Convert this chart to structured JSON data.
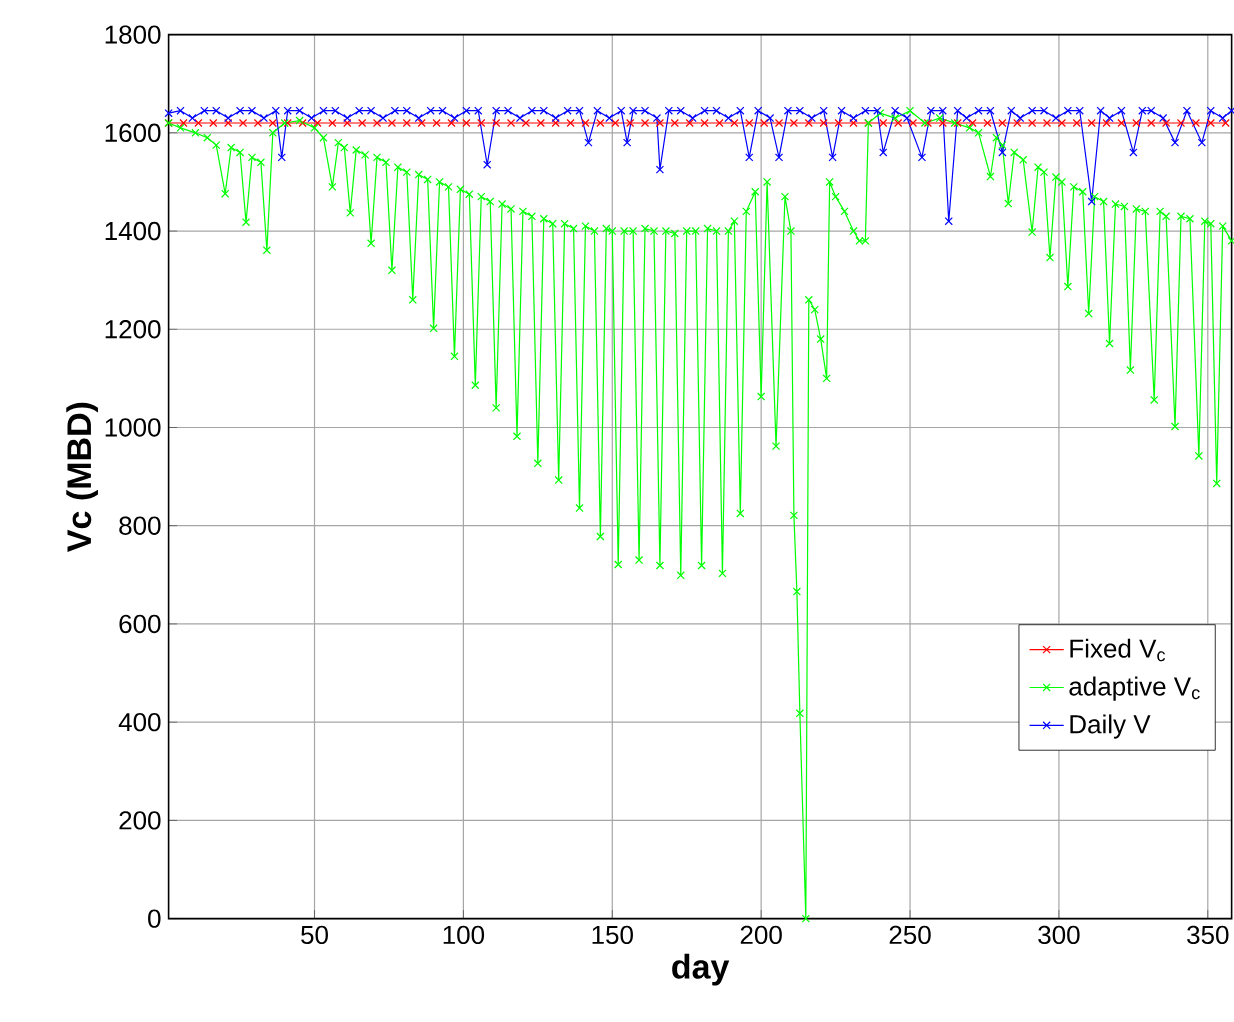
{
  "chart_data": {
    "type": "line",
    "xlabel": "day",
    "ylabel": "Vc (MBD)",
    "xlim": [
      1,
      358
    ],
    "ylim": [
      0,
      1800
    ],
    "xticks": [
      50,
      100,
      150,
      200,
      250,
      300,
      350
    ],
    "yticks": [
      0,
      200,
      400,
      600,
      800,
      1000,
      1200,
      1400,
      1600,
      1800
    ],
    "grid": true,
    "legend": "bottom right",
    "marker": "cross",
    "line_style": "solid",
    "series": [
      {
        "name": "Fixed V$_{c}$",
        "color": "#ff0000",
        "x": [
          1,
          6,
          11,
          16,
          21,
          26,
          31,
          36,
          41,
          46,
          51,
          56,
          61,
          66,
          71,
          76,
          81,
          86,
          91,
          96,
          101,
          106,
          111,
          116,
          121,
          126,
          131,
          136,
          141,
          146,
          151,
          156,
          161,
          166,
          171,
          176,
          181,
          186,
          191,
          196,
          201,
          206,
          211,
          216,
          221,
          226,
          231,
          236,
          241,
          246,
          251,
          256,
          261,
          266,
          271,
          276,
          281,
          286,
          291,
          296,
          301,
          306,
          311,
          316,
          321,
          326,
          331,
          336,
          341,
          346,
          351,
          356
        ],
        "values": [
          1620,
          1620,
          1620,
          1620,
          1620,
          1620,
          1620,
          1620,
          1620,
          1620,
          1620,
          1620,
          1620,
          1620,
          1620,
          1620,
          1620,
          1620,
          1620,
          1620,
          1620,
          1620,
          1620,
          1620,
          1620,
          1620,
          1620,
          1620,
          1620,
          1620,
          1620,
          1620,
          1620,
          1620,
          1620,
          1620,
          1620,
          1620,
          1620,
          1620,
          1620,
          1620,
          1620,
          1620,
          1620,
          1620,
          1620,
          1620,
          1620,
          1620,
          1620,
          1620,
          1620,
          1620,
          1620,
          1620,
          1620,
          1620,
          1620,
          1620,
          1620,
          1620,
          1620,
          1620,
          1620,
          1620,
          1620,
          1620,
          1620,
          1620,
          1620,
          1620
        ]
      },
      {
        "name": "adaptive V$_{c}$",
        "color": "#00ff00",
        "x": [
          1,
          5,
          10,
          14,
          17,
          20,
          22,
          25,
          27,
          29,
          32,
          34,
          36,
          40,
          45,
          50,
          53,
          56,
          58,
          60,
          62,
          64,
          67,
          69,
          71,
          74,
          76,
          78,
          81,
          83,
          85,
          88,
          90,
          92,
          95,
          97,
          99,
          102,
          104,
          106,
          109,
          111,
          113,
          116,
          118,
          120,
          123,
          125,
          127,
          130,
          132,
          134,
          137,
          139,
          141,
          144,
          146,
          148,
          150,
          152,
          154,
          157,
          159,
          161,
          164,
          166,
          168,
          171,
          173,
          175,
          178,
          180,
          182,
          185,
          187,
          189,
          191,
          193,
          195,
          198,
          200,
          202,
          205,
          208,
          210,
          211,
          212,
          213,
          215,
          216,
          218,
          220,
          222,
          223,
          225,
          228,
          231,
          233,
          235,
          236,
          240,
          245,
          250,
          255,
          260,
          265,
          270,
          273,
          277,
          279,
          281,
          283,
          285,
          288,
          291,
          293,
          295,
          297,
          299,
          301,
          303,
          305,
          308,
          310,
          312,
          315,
          317,
          319,
          322,
          324,
          326,
          329,
          332,
          334,
          336,
          339,
          341,
          344,
          347,
          349,
          351,
          353,
          355,
          358
        ],
        "values": [
          1620,
          1610,
          1600,
          1590,
          1575,
          1476,
          1570,
          1560,
          1418,
          1550,
          1540,
          1361,
          1600,
          1620,
          1625,
          1610,
          1590,
          1490,
          1580,
          1570,
          1437,
          1565,
          1555,
          1375,
          1550,
          1540,
          1320,
          1530,
          1520,
          1260,
          1515,
          1505,
          1202,
          1500,
          1490,
          1145,
          1485,
          1475,
          1086,
          1470,
          1460,
          1040,
          1455,
          1445,
          982,
          1440,
          1430,
          927,
          1425,
          1415,
          893,
          1415,
          1405,
          836,
          1410,
          1400,
          778,
          1405,
          1400,
          721,
          1400,
          1400,
          730,
          1405,
          1400,
          719,
          1400,
          1395,
          699,
          1400,
          1400,
          719,
          1405,
          1400,
          703,
          1400,
          1420,
          825,
          1440,
          1480,
          1063,
          1500,
          962,
          1470,
          1400,
          821,
          666,
          418,
          0,
          1260,
          1240,
          1180,
          1100,
          1500,
          1470,
          1440,
          1400,
          1380,
          1380,
          1620,
          1640,
          1630,
          1645,
          1620,
          1630,
          1620,
          1610,
          1600,
          1511,
          1590,
          1575,
          1456,
          1560,
          1545,
          1398,
          1530,
          1520,
          1346,
          1510,
          1500,
          1287,
          1490,
          1480,
          1232,
          1470,
          1460,
          1171,
          1455,
          1450,
          1117,
          1445,
          1440,
          1056,
          1440,
          1430,
          1002,
          1430,
          1425,
          942,
          1420,
          1415,
          886,
          1410,
          1380
        ]
      },
      {
        "name": "Daily V",
        "color": "#0000ff",
        "x": [
          1,
          5,
          9,
          13,
          17,
          21,
          25,
          29,
          33,
          37,
          39,
          41,
          45,
          49,
          53,
          57,
          61,
          65,
          69,
          73,
          77,
          81,
          85,
          89,
          93,
          97,
          101,
          105,
          108,
          111,
          115,
          119,
          123,
          127,
          131,
          135,
          139,
          142,
          145,
          149,
          153,
          155,
          157,
          161,
          165,
          166,
          169,
          173,
          177,
          181,
          185,
          189,
          193,
          196,
          199,
          203,
          206,
          209,
          213,
          217,
          221,
          224,
          227,
          231,
          235,
          239,
          241,
          245,
          249,
          254,
          257,
          261,
          263,
          266,
          269,
          273,
          277,
          281,
          284,
          287,
          291,
          295,
          299,
          303,
          307,
          311,
          314,
          317,
          321,
          325,
          328,
          331,
          335,
          339,
          343,
          348,
          351,
          355,
          358
        ],
        "values": [
          1640,
          1645,
          1630,
          1645,
          1645,
          1630,
          1645,
          1645,
          1630,
          1645,
          1550,
          1645,
          1645,
          1630,
          1645,
          1645,
          1630,
          1645,
          1645,
          1630,
          1645,
          1645,
          1630,
          1645,
          1645,
          1630,
          1645,
          1645,
          1535,
          1645,
          1645,
          1630,
          1645,
          1645,
          1630,
          1645,
          1645,
          1580,
          1645,
          1630,
          1645,
          1580,
          1645,
          1645,
          1630,
          1525,
          1645,
          1645,
          1630,
          1645,
          1645,
          1630,
          1645,
          1550,
          1645,
          1630,
          1550,
          1645,
          1645,
          1630,
          1645,
          1550,
          1645,
          1630,
          1645,
          1645,
          1560,
          1645,
          1630,
          1550,
          1645,
          1645,
          1420,
          1645,
          1630,
          1645,
          1645,
          1560,
          1645,
          1630,
          1645,
          1645,
          1630,
          1645,
          1645,
          1460,
          1645,
          1630,
          1645,
          1560,
          1645,
          1645,
          1630,
          1580,
          1645,
          1580,
          1645,
          1630,
          1645
        ]
      }
    ]
  }
}
